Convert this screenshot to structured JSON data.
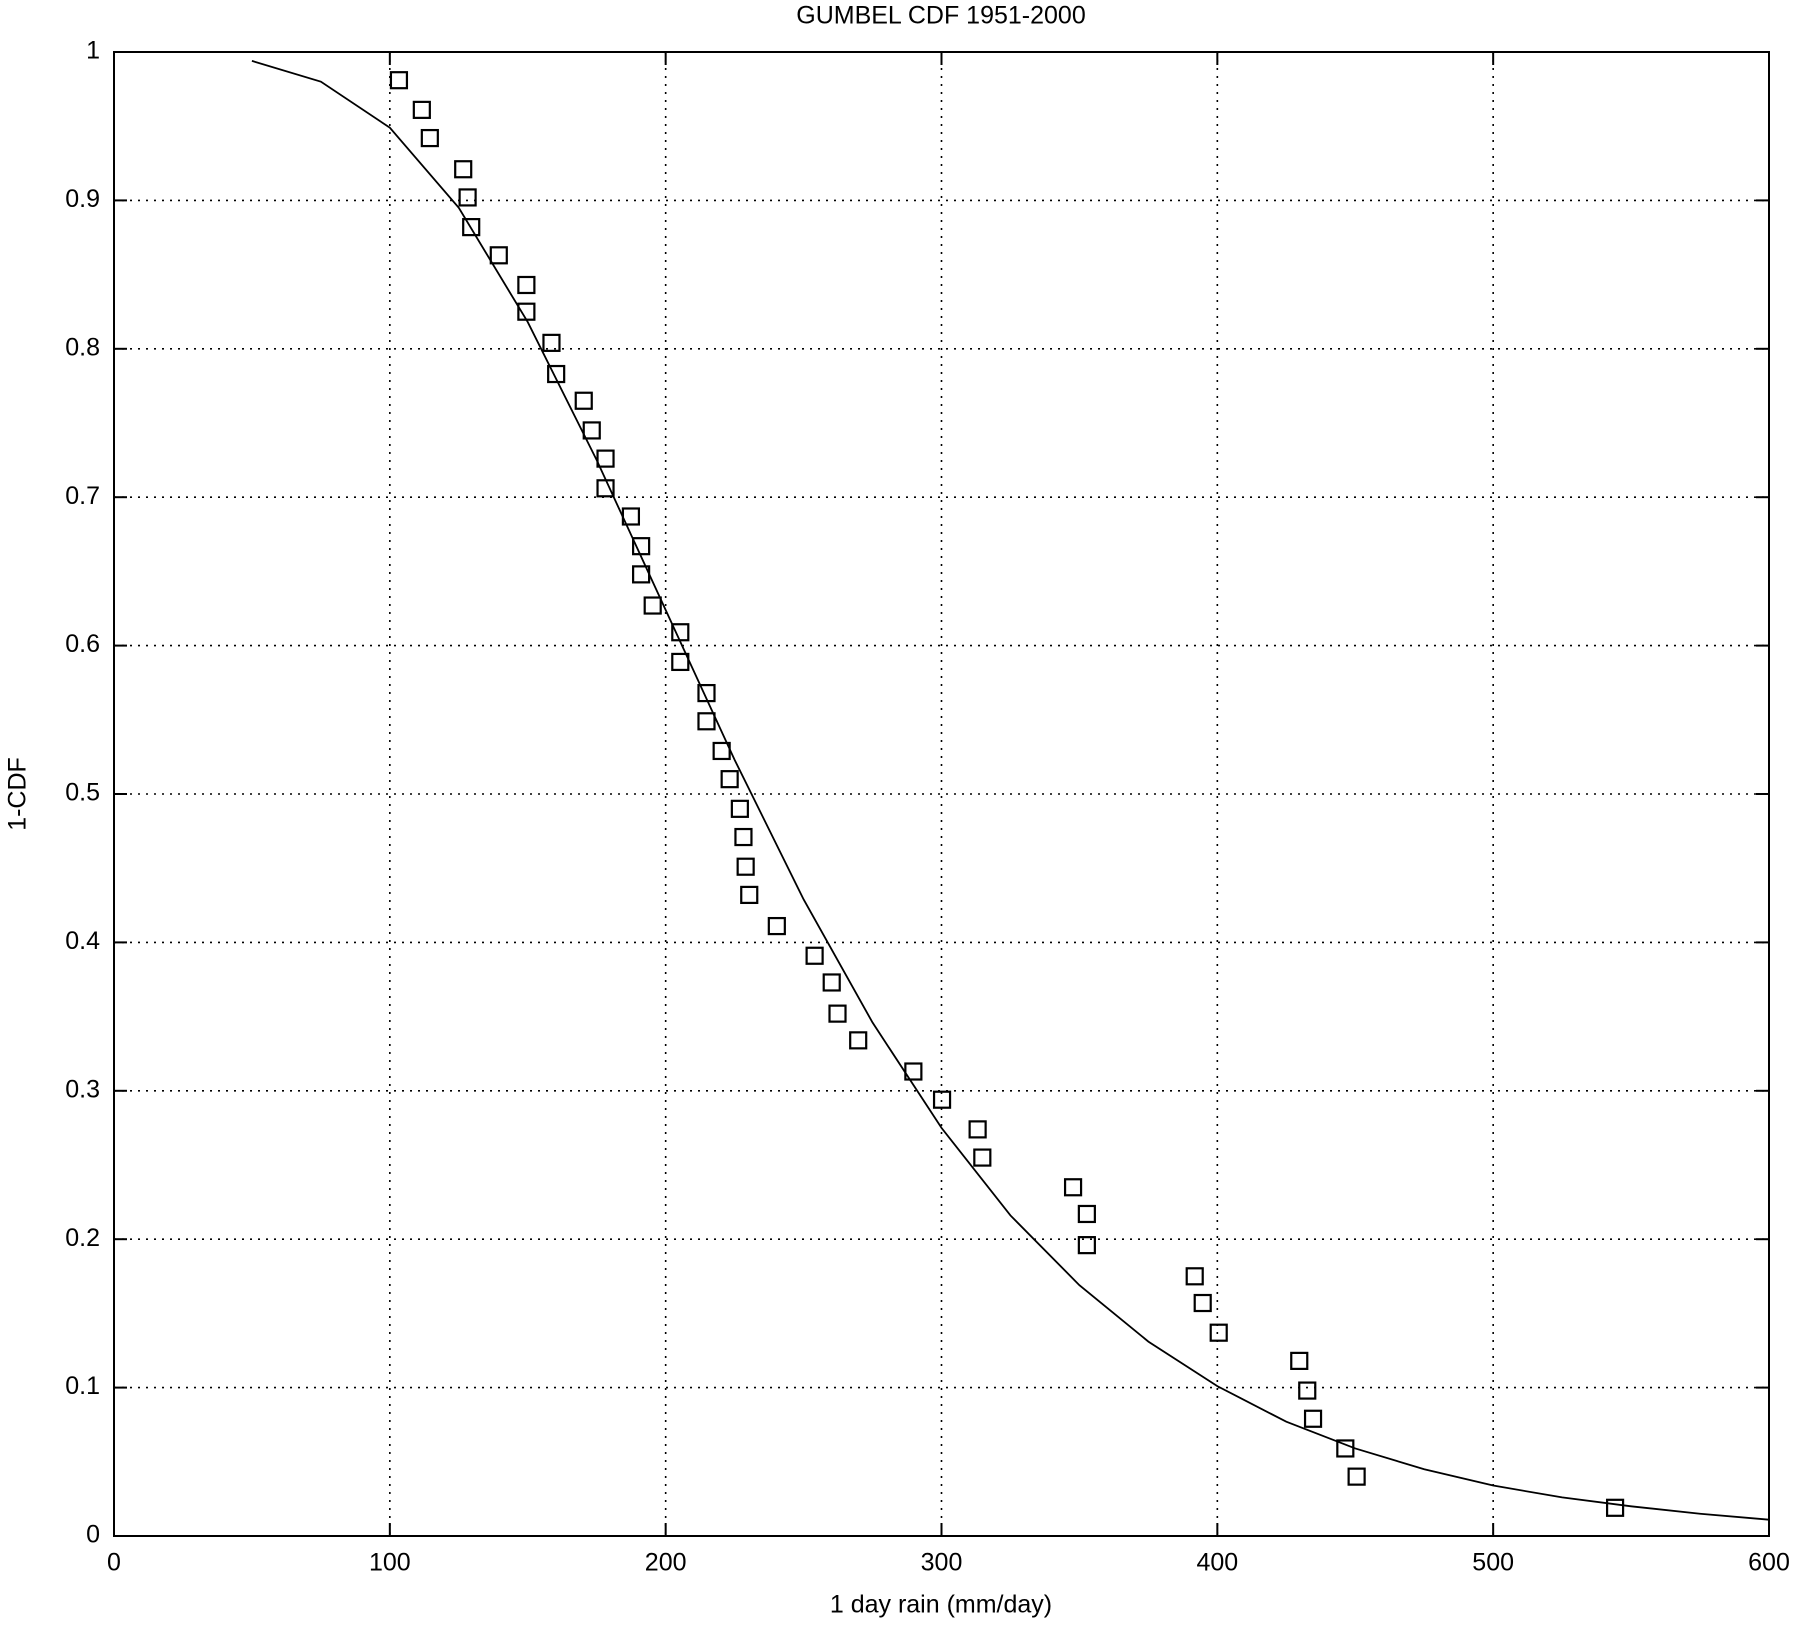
{
  "chart_data": {
    "type": "scatter",
    "title": "GUMBEL   CDF       1951-2000",
    "x_label": "1 day rain (mm/day)",
    "y_label": "1-CDF",
    "xlim": [
      0,
      600
    ],
    "xticks": [
      0,
      100,
      200,
      300,
      400,
      500,
      600
    ],
    "ylim": [
      0,
      1
    ],
    "yticks": [
      0,
      0.1,
      0.2,
      0.3,
      0.4,
      0.5,
      0.6,
      0.7,
      0.8,
      0.9,
      1
    ],
    "grid": true,
    "series": [
      {
        "type": "scatter",
        "marker": "square",
        "color": "#000000",
        "x": [
          103.3,
          111.6,
          114.5,
          126.6,
          128.2,
          129.5,
          139.5,
          149.5,
          149.5,
          158.6,
          160.3,
          170.3,
          173.2,
          178.2,
          178.2,
          187.4,
          191.1,
          191.1,
          195.3,
          205.3,
          205.3,
          214.8,
          214.8,
          220.3,
          223.2,
          226.9,
          228.2,
          229.0,
          230.3,
          240.3,
          254.0,
          260.2,
          262.3,
          269.8,
          289.8,
          300.2,
          313.1,
          314.8,
          347.7,
          352.7,
          352.7,
          391.8,
          394.7,
          400.5,
          429.7,
          432.6,
          434.7,
          446.4,
          450.5,
          544.2
        ],
        "values": [
          0.981,
          0.961,
          0.942,
          0.921,
          0.902,
          0.882,
          0.863,
          0.843,
          0.825,
          0.804,
          0.783,
          0.765,
          0.745,
          0.726,
          0.706,
          0.687,
          0.667,
          0.648,
          0.627,
          0.609,
          0.589,
          0.568,
          0.549,
          0.529,
          0.51,
          0.49,
          0.471,
          0.451,
          0.432,
          0.411,
          0.391,
          0.373,
          0.352,
          0.334,
          0.313,
          0.294,
          0.274,
          0.255,
          0.235,
          0.217,
          0.196,
          0.175,
          0.157,
          0.137,
          0.118,
          0.098,
          0.079,
          0.059,
          0.04,
          0.019
        ]
      },
      {
        "type": "line",
        "color": "#000000",
        "x": [
          50,
          75,
          100,
          125,
          150,
          175,
          200,
          225,
          250,
          275,
          300,
          325,
          350,
          375,
          400,
          425,
          450,
          475,
          500,
          525,
          550,
          575,
          600
        ],
        "values": [
          0.994,
          0.98,
          0.949,
          0.895,
          0.818,
          0.725,
          0.624,
          0.523,
          0.429,
          0.346,
          0.275,
          0.216,
          0.169,
          0.131,
          0.101,
          0.077,
          0.059,
          0.045,
          0.034,
          0.026,
          0.02,
          0.015,
          0.011
        ]
      }
    ]
  }
}
